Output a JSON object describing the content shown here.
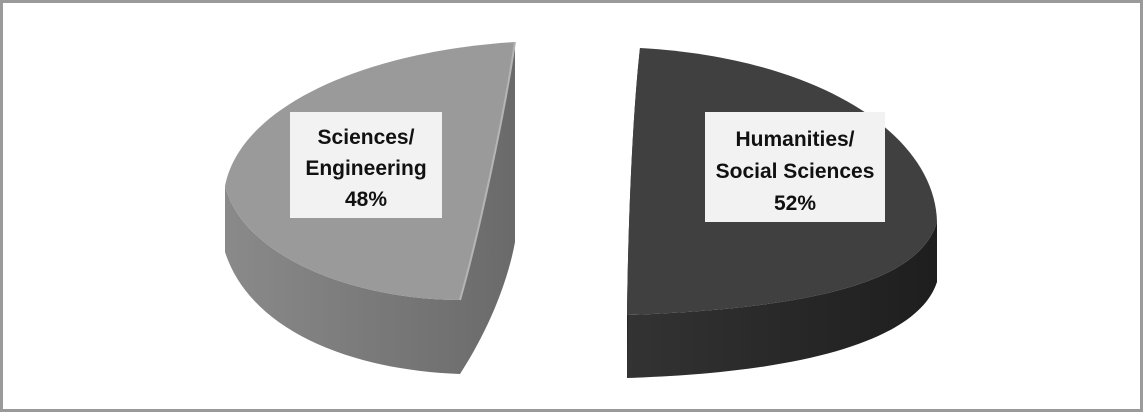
{
  "chart_data": {
    "type": "pie",
    "title": "",
    "legend": "none",
    "categories": [
      "Sciences/ Engineering",
      "Humanities/ Social Sciences"
    ],
    "values": [
      48,
      52
    ],
    "unit": "%",
    "labels": [
      {
        "lines": [
          "Sciences/",
          "Engineering"
        ],
        "value_text": "48%"
      },
      {
        "lines": [
          "Humanities/",
          "Social Sciences"
        ],
        "value_text": "52%"
      }
    ],
    "colors": {
      "sciences_top": "#9a9a9a",
      "sciences_side": "#7f7f7f",
      "humanities_top": "#404040",
      "humanities_side": "#2b2b2b",
      "label_box": "#f2f2f2",
      "border": "#9a9a9a"
    }
  }
}
